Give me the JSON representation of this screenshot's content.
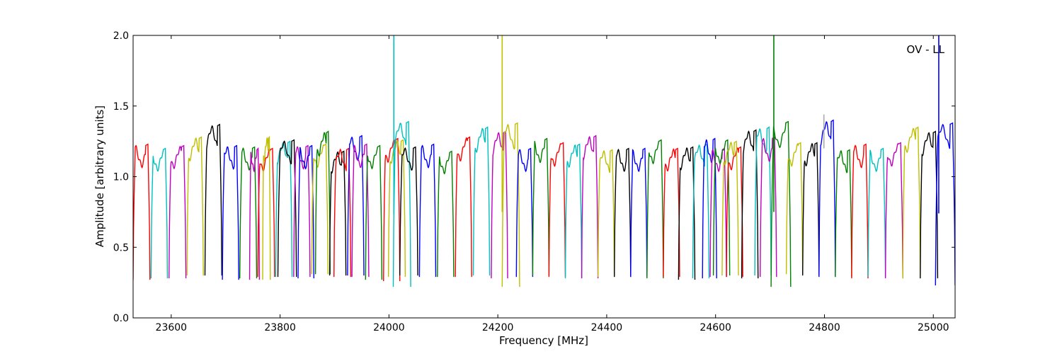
{
  "chart_data": {
    "type": "line",
    "title": "",
    "xlabel": "Frequency [MHz]",
    "ylabel": "Amplitude [arbitrary units]",
    "annotation": "OV - LL",
    "xlim": [
      23530,
      25040
    ],
    "ylim": [
      0.0,
      2.0
    ],
    "xticks": [
      23600,
      23800,
      24000,
      24200,
      24400,
      24600,
      24800,
      25000
    ],
    "yticks": [
      0.0,
      0.5,
      1.0,
      1.5,
      2.0
    ],
    "ytick_labels": [
      "0.0",
      "0.5",
      "1.0",
      "1.5",
      "2.0"
    ],
    "grid": false,
    "legend": "none",
    "color_cycle": [
      "#ff0000",
      "#00bfbf",
      "#bf00bf",
      "#bfbf00",
      "#000000",
      "#0000ff",
      "#008000"
    ],
    "series": [
      {
        "color": "#ff0000",
        "x_start": 23530,
        "x_end": 23561,
        "peak": 1.23,
        "trough": 0.27
      },
      {
        "color": "#00bfbf",
        "x_start": 23563,
        "x_end": 23593,
        "peak": 1.2,
        "trough": 0.28
      },
      {
        "color": "#bf00bf",
        "x_start": 23596,
        "x_end": 23627,
        "peak": 1.22,
        "trough": 0.28
      },
      {
        "color": "#bfbf00",
        "x_start": 23629,
        "x_end": 23659,
        "peak": 1.28,
        "trough": 0.3
      },
      {
        "color": "#000000",
        "x_start": 23662,
        "x_end": 23693,
        "peak": 1.37,
        "trough": 0.3
      },
      {
        "color": "#0000ff",
        "x_start": 23694,
        "x_end": 23724,
        "peak": 1.22,
        "trough": 0.27
      },
      {
        "color": "#008000",
        "x_start": 23726,
        "x_end": 23757,
        "peak": 1.21,
        "trough": 0.28
      },
      {
        "color": "#bf00bf",
        "x_start": 23744,
        "x_end": 23762,
        "peak": 1.2,
        "trough": 0.27
      },
      {
        "color": "#ff0000",
        "x_start": 23759,
        "x_end": 23790,
        "peak": 1.2,
        "trough": 0.29
      },
      {
        "color": "#bfbf00",
        "x_start": 23768,
        "x_end": 23782,
        "peak": 1.28,
        "trough": 0.27
      },
      {
        "color": "#00bfbf",
        "x_start": 23792,
        "x_end": 23822,
        "peak": 1.25,
        "trough": 0.29
      },
      {
        "color": "#000000",
        "x_start": 23796,
        "x_end": 23830,
        "peak": 1.26,
        "trough": 0.29
      },
      {
        "color": "#bf00bf",
        "x_start": 23825,
        "x_end": 23855,
        "peak": 1.22,
        "trough": 0.29
      },
      {
        "color": "#0000ff",
        "x_start": 23833,
        "x_end": 23862,
        "peak": 1.22,
        "trough": 0.28
      },
      {
        "color": "#bfbf00",
        "x_start": 23858,
        "x_end": 23888,
        "peak": 1.23,
        "trough": 0.31
      },
      {
        "color": "#008000",
        "x_start": 23865,
        "x_end": 23892,
        "peak": 1.32,
        "trough": 0.31
      },
      {
        "color": "#000000",
        "x_start": 23891,
        "x_end": 23921,
        "peak": 1.18,
        "trough": 0.3
      },
      {
        "color": "#ff0000",
        "x_start": 23899,
        "x_end": 23930,
        "peak": 1.2,
        "trough": 0.29
      },
      {
        "color": "#0000ff",
        "x_start": 23924,
        "x_end": 23954,
        "peak": 1.29,
        "trough": 0.3
      },
      {
        "color": "#bf00bf",
        "x_start": 23932,
        "x_end": 23963,
        "peak": 1.23,
        "trough": 0.29
      },
      {
        "color": "#008000",
        "x_start": 23957,
        "x_end": 23987,
        "peak": 1.22,
        "trough": 0.27
      },
      {
        "color": "#ff0000",
        "x_start": 23990,
        "x_end": 24020,
        "peak": 1.27,
        "trough": 0.26
      },
      {
        "color": "#bfbf00",
        "x_start": 23999,
        "x_end": 24030,
        "peak": 1.26,
        "trough": 0.29
      },
      {
        "color": "#00bfbf",
        "x_start": 24008,
        "x_end": 24040,
        "peak": 1.39,
        "trough": 0.22
      },
      {
        "color": "#000000",
        "x_start": 24020,
        "x_end": 24053,
        "peak": 1.21,
        "trough": 0.3
      },
      {
        "color": "#0000ff",
        "x_start": 24056,
        "x_end": 24086,
        "peak": 1.23,
        "trough": 0.29
      },
      {
        "color": "#008000",
        "x_start": 24089,
        "x_end": 24119,
        "peak": 1.18,
        "trough": 0.29
      },
      {
        "color": "#ff0000",
        "x_start": 24122,
        "x_end": 24152,
        "peak": 1.28,
        "trough": 0.29
      },
      {
        "color": "#00bfbf",
        "x_start": 24155,
        "x_end": 24185,
        "peak": 1.35,
        "trough": 0.3
      },
      {
        "color": "#bf00bf",
        "x_start": 24188,
        "x_end": 24218,
        "peak": 1.32,
        "trough": 0.28
      },
      {
        "color": "#bfbf00",
        "x_start": 24208,
        "x_end": 24240,
        "peak": 1.38,
        "trough": 0.22
      },
      {
        "color": "#0000ff",
        "x_start": 24234,
        "x_end": 24264,
        "peak": 1.2,
        "trough": 0.29
      },
      {
        "color": "#008000",
        "x_start": 24264,
        "x_end": 24294,
        "peak": 1.27,
        "trough": 0.3
      },
      {
        "color": "#ff0000",
        "x_start": 24294,
        "x_end": 24324,
        "peak": 1.24,
        "trough": 0.29
      },
      {
        "color": "#00bfbf",
        "x_start": 24324,
        "x_end": 24354,
        "peak": 1.23,
        "trough": 0.28
      },
      {
        "color": "#bf00bf",
        "x_start": 24354,
        "x_end": 24384,
        "peak": 1.29,
        "trough": 0.28
      },
      {
        "color": "#bfbf00",
        "x_start": 24384,
        "x_end": 24414,
        "peak": 1.19,
        "trough": 0.29
      },
      {
        "color": "#000000",
        "x_start": 24414,
        "x_end": 24444,
        "peak": 1.2,
        "trough": 0.29
      },
      {
        "color": "#0000ff",
        "x_start": 24444,
        "x_end": 24474,
        "peak": 1.2,
        "trough": 0.29
      },
      {
        "color": "#008000",
        "x_start": 24474,
        "x_end": 24504,
        "peak": 1.26,
        "trough": 0.28
      },
      {
        "color": "#ff0000",
        "x_start": 24504,
        "x_end": 24534,
        "peak": 1.2,
        "trough": 0.29
      },
      {
        "color": "#000000",
        "x_start": 24532,
        "x_end": 24562,
        "peak": 1.21,
        "trough": 0.27
      },
      {
        "color": "#00bfbf",
        "x_start": 24558,
        "x_end": 24588,
        "peak": 1.23,
        "trough": 0.28
      },
      {
        "color": "#0000ff",
        "x_start": 24576,
        "x_end": 24602,
        "peak": 1.27,
        "trough": 0.28
      },
      {
        "color": "#bf00bf",
        "x_start": 24590,
        "x_end": 24620,
        "peak": 1.2,
        "trough": 0.29
      },
      {
        "color": "#008000",
        "x_start": 24596,
        "x_end": 24626,
        "peak": 1.26,
        "trough": 0.3
      },
      {
        "color": "#ff0000",
        "x_start": 24620,
        "x_end": 24650,
        "peak": 1.21,
        "trough": 0.29
      },
      {
        "color": "#bfbf00",
        "x_start": 24612,
        "x_end": 24642,
        "peak": 1.25,
        "trough": 0.3
      },
      {
        "color": "#000000",
        "x_start": 24648,
        "x_end": 24678,
        "peak": 1.33,
        "trough": 0.28
      },
      {
        "color": "#00bfbf",
        "x_start": 24672,
        "x_end": 24702,
        "peak": 1.35,
        "trough": 0.3
      },
      {
        "color": "#bf00bf",
        "x_start": 24682,
        "x_end": 24712,
        "peak": 1.28,
        "trough": 0.29
      },
      {
        "color": "#008000",
        "x_start": 24702,
        "x_end": 24738,
        "peak": 1.39,
        "trough": 0.22
      },
      {
        "color": "#bfbf00",
        "x_start": 24730,
        "x_end": 24760,
        "peak": 1.24,
        "trough": 0.31
      },
      {
        "color": "#000000",
        "x_start": 24760,
        "x_end": 24790,
        "peak": 1.24,
        "trough": 0.3
      },
      {
        "color": "#0000ff",
        "x_start": 24790,
        "x_end": 24820,
        "peak": 1.4,
        "trough": 0.29
      },
      {
        "color": "#008000",
        "x_start": 24820,
        "x_end": 24850,
        "peak": 1.19,
        "trough": 0.29
      },
      {
        "color": "#ff0000",
        "x_start": 24850,
        "x_end": 24880,
        "peak": 1.23,
        "trough": 0.28
      },
      {
        "color": "#00bfbf",
        "x_start": 24880,
        "x_end": 24912,
        "peak": 1.2,
        "trough": 0.29
      },
      {
        "color": "#bf00bf",
        "x_start": 24912,
        "x_end": 24944,
        "peak": 1.24,
        "trough": 0.28
      },
      {
        "color": "#bfbf00",
        "x_start": 24944,
        "x_end": 24976,
        "peak": 1.35,
        "trough": 0.28
      },
      {
        "color": "#000000",
        "x_start": 24976,
        "x_end": 25008,
        "peak": 1.32,
        "trough": 0.28
      },
      {
        "color": "#0000ff",
        "x_start": 25004,
        "x_end": 25040,
        "peak": 1.38,
        "trough": 0.23
      }
    ],
    "spikes": [
      {
        "x": 24009,
        "color": "#00bfbf",
        "top": 2.0,
        "bottom": 0.73
      },
      {
        "x": 24208,
        "color": "#bfbf00",
        "top": 2.0,
        "bottom": 0.75
      },
      {
        "x": 24707,
        "color": "#008000",
        "top": 2.0,
        "bottom": 0.75
      },
      {
        "x": 24799,
        "color": "#aaaaaa",
        "top": 1.44,
        "bottom": 1.2
      },
      {
        "x": 25010,
        "color": "#0000ff",
        "top": 2.0,
        "bottom": 0.74
      }
    ]
  }
}
